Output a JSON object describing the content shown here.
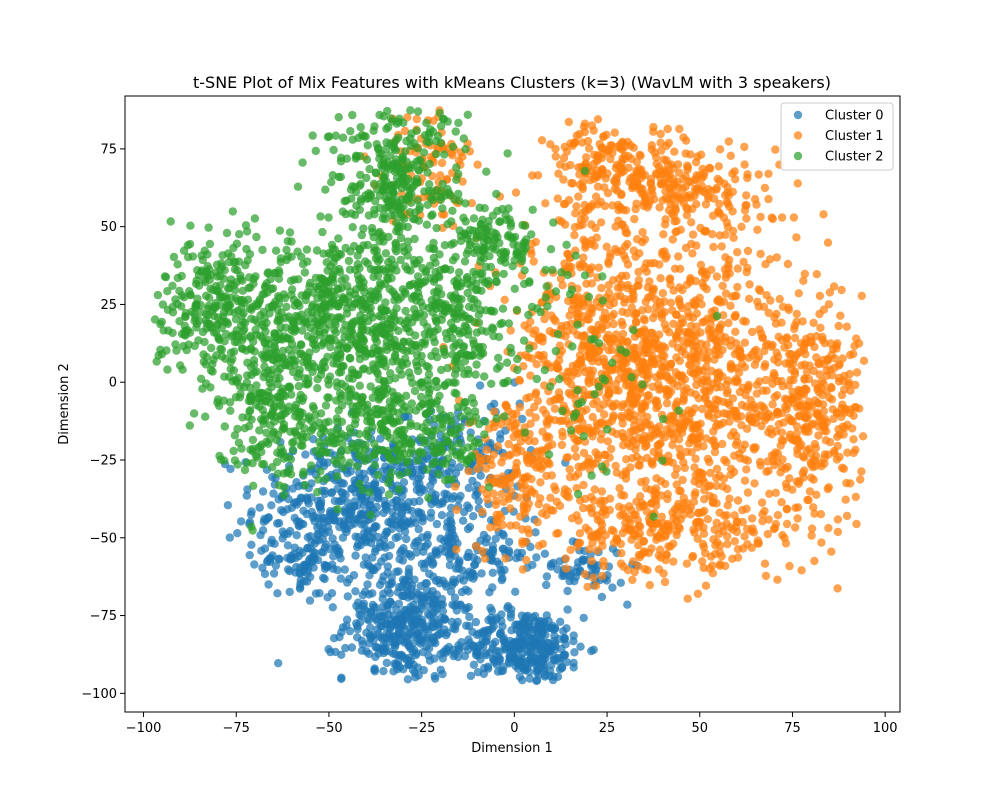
{
  "chart_data": {
    "type": "scatter",
    "title": "t-SNE Plot of Mix Features with kMeans Clusters (k=3) (WavLM with 3 speakers)",
    "xlabel": "Dimension 1",
    "ylabel": "Dimension 2",
    "xlim": [
      -105,
      104
    ],
    "ylim": [
      -106,
      92
    ],
    "xticks": [
      -100,
      -75,
      -50,
      -25,
      0,
      25,
      50,
      75,
      100
    ],
    "yticks": [
      -100,
      -75,
      -50,
      -25,
      0,
      25,
      50,
      75
    ],
    "grid": false,
    "legend_position": "top-right",
    "series": [
      {
        "name": "Cluster 0",
        "color": "#1f77b4",
        "regions": [
          {
            "cx": -42,
            "cy": -40,
            "sx": 14,
            "sy": 12,
            "n": 520
          },
          {
            "cx": -30,
            "cy": -78,
            "sx": 8,
            "sy": 9,
            "n": 380
          },
          {
            "cx": 3,
            "cy": -85,
            "sx": 8,
            "sy": 6,
            "n": 330
          },
          {
            "cx": -12,
            "cy": -55,
            "sx": 9,
            "sy": 8,
            "n": 150
          },
          {
            "cx": -58,
            "cy": -58,
            "sx": 6,
            "sy": 4,
            "n": 70
          },
          {
            "cx": 18,
            "cy": -60,
            "sx": 6,
            "sy": 4,
            "n": 60
          },
          {
            "cx": -15,
            "cy": -25,
            "sx": 10,
            "sy": 10,
            "n": 130
          }
        ]
      },
      {
        "name": "Cluster 1",
        "color": "#ff7f0e",
        "regions": [
          {
            "cx": 45,
            "cy": 0,
            "sx": 20,
            "sy": 24,
            "n": 1100
          },
          {
            "cx": 20,
            "cy": 10,
            "sx": 10,
            "sy": 22,
            "n": 380
          },
          {
            "cx": 80,
            "cy": -10,
            "sx": 7,
            "sy": 16,
            "n": 280
          },
          {
            "cx": 45,
            "cy": 62,
            "sx": 12,
            "sy": 8,
            "n": 220
          },
          {
            "cx": 25,
            "cy": 70,
            "sx": 8,
            "sy": 7,
            "n": 140
          },
          {
            "cx": 40,
            "cy": -48,
            "sx": 16,
            "sy": 7,
            "n": 240
          },
          {
            "cx": -22,
            "cy": 70,
            "sx": 6,
            "sy": 10,
            "n": 90
          },
          {
            "cx": 0,
            "cy": -30,
            "sx": 6,
            "sy": 12,
            "n": 150
          }
        ]
      },
      {
        "name": "Cluster 2",
        "color": "#2ca02c",
        "regions": [
          {
            "cx": -45,
            "cy": 20,
            "sx": 17,
            "sy": 15,
            "n": 800
          },
          {
            "cx": -82,
            "cy": 25,
            "sx": 8,
            "sy": 11,
            "n": 240
          },
          {
            "cx": -65,
            "cy": -10,
            "sx": 8,
            "sy": 12,
            "n": 220
          },
          {
            "cx": -32,
            "cy": 65,
            "sx": 9,
            "sy": 12,
            "n": 300
          },
          {
            "cx": -30,
            "cy": -15,
            "sx": 12,
            "sy": 10,
            "n": 300
          },
          {
            "cx": -5,
            "cy": 45,
            "sx": 6,
            "sy": 6,
            "n": 110
          },
          {
            "cx": 10,
            "cy": 10,
            "sx": 14,
            "sy": 22,
            "n": 90
          },
          {
            "cx": -15,
            "cy": 25,
            "sx": 6,
            "sy": 10,
            "n": 130
          }
        ]
      }
    ]
  }
}
